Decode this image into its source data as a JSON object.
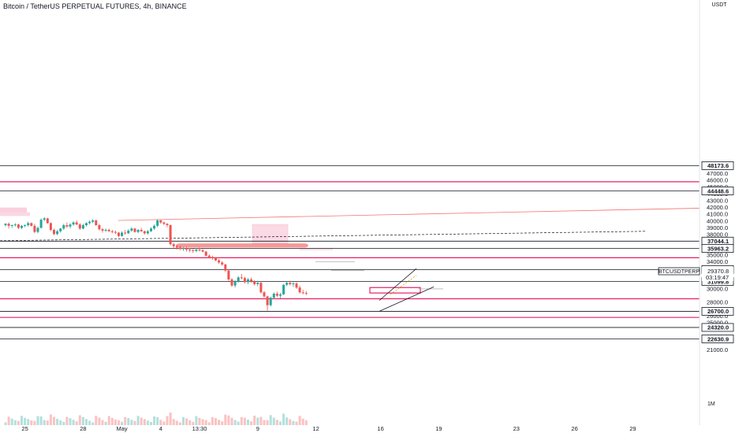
{
  "chart_data": {
    "type": "candlestick",
    "title": "Bitcoin / TetherUS PERPETUAL FUTURES, 4h, BINANCE",
    "currency": "USDT",
    "symbol_tag": "BTCUSDTPERP",
    "current_price": "29370.8",
    "countdown": "03:19:47",
    "volume_label": "1M",
    "ylim": [
      19000,
      49000
    ],
    "y_ticks": [
      "21000.0",
      "23000.0",
      "25000.0",
      "26000.0",
      "28000.0",
      "30000.0",
      "32000.0",
      "34000.0",
      "35000.0",
      "36000.0",
      "38000.0",
      "39000.0",
      "40000.0",
      "41000.0",
      "42000.0",
      "43000.0",
      "44000.0",
      "45000.0",
      "46000.0",
      "47000.0"
    ],
    "x_ticks": [
      {
        "label": "25",
        "i": 6
      },
      {
        "label": "28",
        "i": 24
      },
      {
        "label": "May",
        "i": 36
      },
      {
        "label": "4",
        "i": 48
      },
      {
        "label": "13:30",
        "i": 60
      },
      {
        "label": "9",
        "i": 78
      },
      {
        "label": "12",
        "i": 96
      },
      {
        "label": "16",
        "i": 116
      },
      {
        "label": "19",
        "i": 134
      },
      {
        "label": "23",
        "i": 158
      },
      {
        "label": "26",
        "i": 176
      },
      {
        "label": "29",
        "i": 194
      }
    ],
    "levels": [
      {
        "price": 48173.6,
        "label": "48173.6",
        "color": "#131722"
      },
      {
        "price": 45800,
        "label": "",
        "color": "#e91e63"
      },
      {
        "price": 44448.6,
        "label": "44448.6",
        "color": "#131722"
      },
      {
        "price": 37044.1,
        "label": "37044.1",
        "color": "#131722"
      },
      {
        "price": 35963.2,
        "label": "35963.2",
        "color": "#131722"
      },
      {
        "price": 34600,
        "label": "",
        "color": "#e91e63"
      },
      {
        "price": 32855.3,
        "label": "32855.3",
        "color": "#131722"
      },
      {
        "price": 31099.8,
        "label": "31099.8",
        "color": "#131722"
      },
      {
        "price": 28550,
        "label": "",
        "color": "#e91e63"
      },
      {
        "price": 26700.0,
        "label": "26700.0",
        "color": "#131722"
      },
      {
        "price": 25800,
        "label": "",
        "color": "#e91e63"
      },
      {
        "price": 24320.0,
        "label": "24320.0",
        "color": "#131722"
      },
      {
        "price": 22630.9,
        "label": "22630.9",
        "color": "#131722"
      }
    ],
    "candles": [
      [
        39400,
        39700,
        39200,
        39600
      ],
      [
        39600,
        39800,
        38900,
        39300
      ],
      [
        39300,
        39500,
        39000,
        39400
      ],
      [
        39400,
        39700,
        39200,
        39500
      ],
      [
        39500,
        39600,
        38800,
        39000
      ],
      [
        39000,
        39400,
        38800,
        39300
      ],
      [
        39300,
        39500,
        39100,
        39400
      ],
      [
        39400,
        39900,
        39200,
        39700
      ],
      [
        39700,
        39800,
        39200,
        39300
      ],
      [
        39300,
        39600,
        38200,
        38400
      ],
      [
        38400,
        39200,
        38200,
        39000
      ],
      [
        39000,
        40400,
        38900,
        40200
      ],
      [
        40200,
        40600,
        40000,
        40400
      ],
      [
        40400,
        40500,
        39600,
        39700
      ],
      [
        39700,
        39800,
        38500,
        38700
      ],
      [
        38700,
        38900,
        37900,
        38100
      ],
      [
        38100,
        38700,
        37900,
        38500
      ],
      [
        38500,
        39000,
        38300,
        38900
      ],
      [
        38900,
        39600,
        38700,
        39400
      ],
      [
        39400,
        39800,
        39000,
        39200
      ],
      [
        39200,
        39700,
        38900,
        39500
      ],
      [
        39500,
        40000,
        39300,
        39800
      ],
      [
        39800,
        40100,
        39400,
        39500
      ],
      [
        39500,
        39700,
        38700,
        38900
      ],
      [
        38900,
        39600,
        38800,
        39400
      ],
      [
        39400,
        39800,
        39200,
        39700
      ],
      [
        39700,
        40100,
        39500,
        39900
      ],
      [
        39900,
        40300,
        39700,
        40100
      ],
      [
        40100,
        40200,
        39300,
        39400
      ],
      [
        39400,
        39600,
        38600,
        38800
      ],
      [
        38800,
        39000,
        38300,
        38600
      ],
      [
        38600,
        38900,
        38400,
        38700
      ],
      [
        38700,
        38900,
        38400,
        38500
      ],
      [
        38500,
        38700,
        38200,
        38400
      ],
      [
        38400,
        38600,
        38100,
        38300
      ],
      [
        38300,
        38400,
        37600,
        37800
      ],
      [
        37800,
        38500,
        37700,
        38300
      ],
      [
        38300,
        38700,
        38000,
        38200
      ],
      [
        38200,
        38800,
        38100,
        38600
      ],
      [
        38600,
        39100,
        38400,
        38900
      ],
      [
        38900,
        39000,
        38300,
        38400
      ],
      [
        38400,
        38800,
        38200,
        38700
      ],
      [
        38700,
        39000,
        38400,
        38500
      ],
      [
        38500,
        38600,
        38000,
        38200
      ],
      [
        38200,
        38700,
        38000,
        38500
      ],
      [
        38500,
        39100,
        38400,
        38900
      ],
      [
        38900,
        39500,
        38700,
        39300
      ],
      [
        39300,
        40300,
        39100,
        40100
      ],
      [
        40100,
        40200,
        39600,
        39800
      ],
      [
        39800,
        39900,
        39400,
        39600
      ],
      [
        39600,
        39700,
        39100,
        39400
      ],
      [
        39400,
        39500,
        36400,
        36600
      ],
      [
        36600,
        36800,
        36000,
        36300
      ],
      [
        36300,
        36500,
        35800,
        36100
      ],
      [
        36100,
        36400,
        35700,
        35900
      ],
      [
        35900,
        36200,
        35600,
        36000
      ],
      [
        36000,
        36200,
        35500,
        35800
      ],
      [
        35800,
        36000,
        35400,
        35700
      ],
      [
        35700,
        35900,
        35300,
        35600
      ],
      [
        35600,
        36000,
        35400,
        35800
      ],
      [
        35800,
        36100,
        35500,
        35700
      ],
      [
        35700,
        35900,
        35400,
        35500
      ],
      [
        35500,
        35600,
        34800,
        34900
      ],
      [
        34900,
        35100,
        34500,
        34700
      ],
      [
        34700,
        34900,
        34300,
        34600
      ],
      [
        34600,
        34700,
        34100,
        34200
      ],
      [
        34200,
        34400,
        33700,
        33900
      ],
      [
        33900,
        34100,
        33400,
        33600
      ],
      [
        33600,
        33700,
        32500,
        32700
      ],
      [
        32700,
        32900,
        31200,
        31400
      ],
      [
        31400,
        31600,
        30300,
        30500
      ],
      [
        30500,
        31300,
        30200,
        31100
      ],
      [
        31100,
        31900,
        30900,
        31700
      ],
      [
        31700,
        32200,
        31400,
        31600
      ],
      [
        31600,
        31800,
        30800,
        31000
      ],
      [
        31000,
        31600,
        30700,
        31400
      ],
      [
        31400,
        31700,
        30900,
        31100
      ],
      [
        31100,
        31300,
        30500,
        30700
      ],
      [
        30700,
        31200,
        30400,
        30900
      ],
      [
        30900,
        31100,
        29300,
        29500
      ],
      [
        29500,
        29700,
        28700,
        28900
      ],
      [
        28900,
        29000,
        26800,
        27600
      ],
      [
        27600,
        28900,
        27400,
        28700
      ],
      [
        28700,
        29500,
        28500,
        29300
      ],
      [
        29300,
        29600,
        28800,
        29000
      ],
      [
        29000,
        29400,
        28600,
        29200
      ],
      [
        29200,
        30700,
        29100,
        30600
      ],
      [
        30600,
        31100,
        30400,
        30900
      ],
      [
        30900,
        31200,
        30500,
        30700
      ],
      [
        30700,
        31000,
        30300,
        30800
      ],
      [
        30800,
        31000,
        30000,
        30200
      ],
      [
        30200,
        30500,
        29300,
        29500
      ],
      [
        29500,
        29900,
        29200,
        29400
      ],
      [
        29400,
        29700,
        29100,
        29370.8
      ]
    ]
  },
  "ui": {
    "colors": {
      "up": "#26a69a",
      "down": "#ef5350",
      "red_line": "#e91e63",
      "black_line": "#131722",
      "zone": "#f8bbd0",
      "zone_border": "#ef9a9a",
      "text": "#131722",
      "grid_text": "#787b86"
    }
  }
}
